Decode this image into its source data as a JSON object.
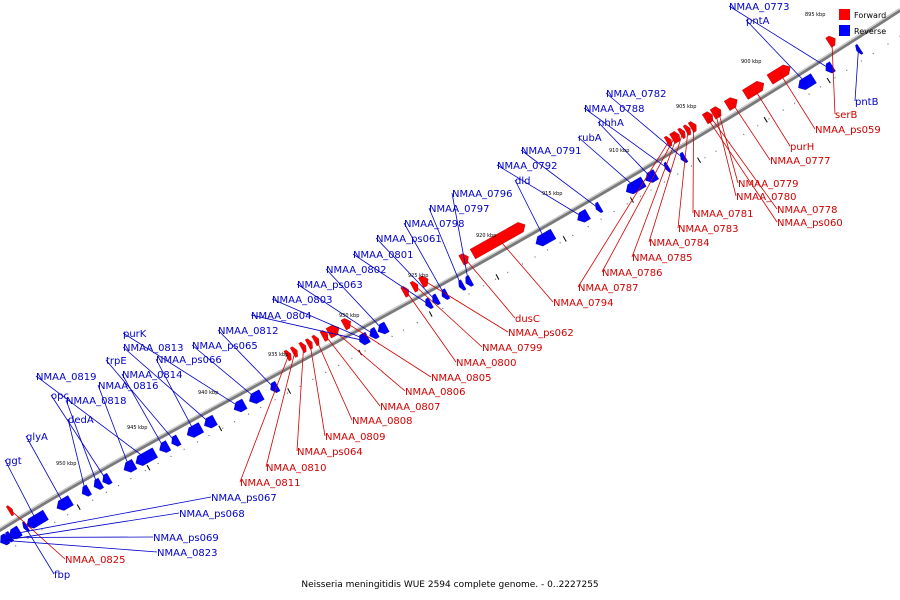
{
  "legend": {
    "forward_label": "Forward",
    "reverse_label": "Reverse",
    "forward_color": "#ff0000",
    "reverse_color": "#0000ff"
  },
  "caption": "Neisseria meningitidis WUE 2594 complete genome. - 0..2227255",
  "ticks": [
    "895 kbp",
    "900 kbp",
    "905 kbp",
    "910 kbp",
    "915 kbp",
    "920 kbp",
    "925 kbp",
    "930 kbp",
    "935 kbp",
    "940 kbp",
    "945 kbp",
    "950 kbp"
  ],
  "forward_genes": [
    "serB",
    "NMAA_ps059",
    "purH",
    "NMAA_0777",
    "NMAA_0779",
    "NMAA_0780",
    "NMAA_0778",
    "NMAA_ps060",
    "NMAA_0781",
    "NMAA_0783",
    "NMAA_0784",
    "NMAA_0785",
    "NMAA_0786",
    "NMAA_0787",
    "NMAA_0794",
    "dusC",
    "NMAA_ps062",
    "NMAA_0799",
    "NMAA_0800",
    "NMAA_0805",
    "NMAA_0806",
    "NMAA_0807",
    "NMAA_0808",
    "NMAA_0809",
    "NMAA_ps064",
    "NMAA_0810",
    "NMAA_0811",
    "NMAA_0825"
  ],
  "reverse_genes": [
    "NMAA_0773",
    "pntA",
    "pntB",
    "NMAA_0782",
    "NMAA_0788",
    "nhhA",
    "rubA",
    "NMAA_0791",
    "NMAA_0792",
    "dld",
    "NMAA_0796",
    "NMAA_0797",
    "NMAA_0798",
    "NMAA_ps061",
    "NMAA_0801",
    "NMAA_0802",
    "NMAA_ps063",
    "NMAA_0803",
    "NMAA_0804",
    "NMAA_0812",
    "NMAA_ps065",
    "purK",
    "NMAA_0813",
    "NMAA_ps066",
    "trpE",
    "NMAA_0814",
    "NMAA_0819",
    "NMAA_0816",
    "opc",
    "NMAA_0818",
    "dedA",
    "glyA",
    "ggt",
    "NMAA_ps067",
    "NMAA_ps068",
    "NMAA_ps069",
    "NMAA_0823",
    "fbp"
  ]
}
